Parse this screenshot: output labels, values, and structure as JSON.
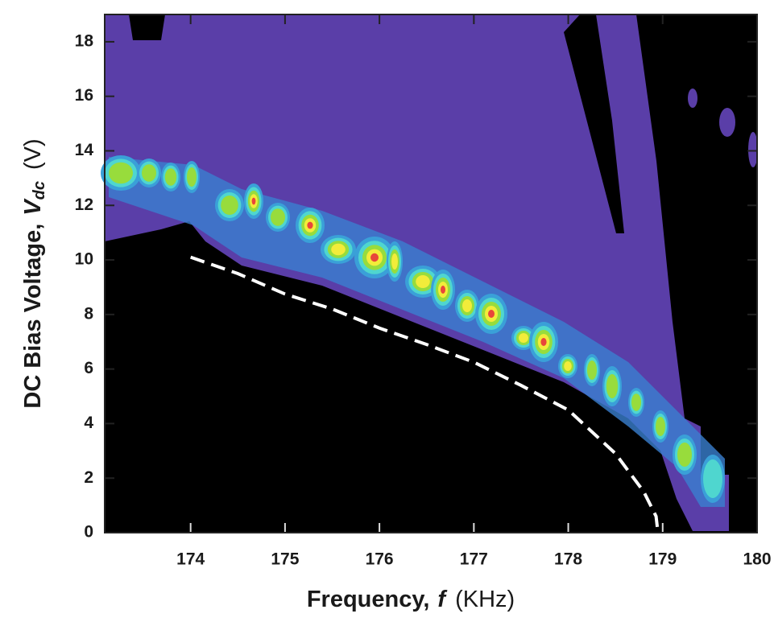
{
  "chart_data": {
    "type": "line",
    "xlabel": {
      "text": "Frequency,",
      "symbol": "f",
      "unit": "(KHz)"
    },
    "ylabel": {
      "text": "DC Bias Voltage,",
      "symbol": "V",
      "subscript": "dc",
      "unit": "(V)"
    },
    "xlim": [
      173.09,
      180
    ],
    "ylim": [
      0,
      19
    ],
    "xticks": [
      174,
      175,
      176,
      177,
      178,
      179,
      180
    ],
    "yticks": [
      0,
      2,
      4,
      6,
      8,
      10,
      12,
      14,
      16,
      18
    ],
    "series": [
      {
        "color": "#ffffff",
        "dashed": true,
        "x": [
          174.0,
          174.5,
          175.0,
          175.5,
          176.0,
          176.5,
          177.0,
          177.5,
          178.0,
          178.5,
          178.8,
          178.93,
          178.95
        ],
        "y": [
          10.1,
          9.5,
          8.75,
          8.2,
          7.5,
          6.9,
          6.25,
          5.4,
          4.5,
          2.9,
          1.5,
          0.6,
          0
        ]
      }
    ]
  }
}
